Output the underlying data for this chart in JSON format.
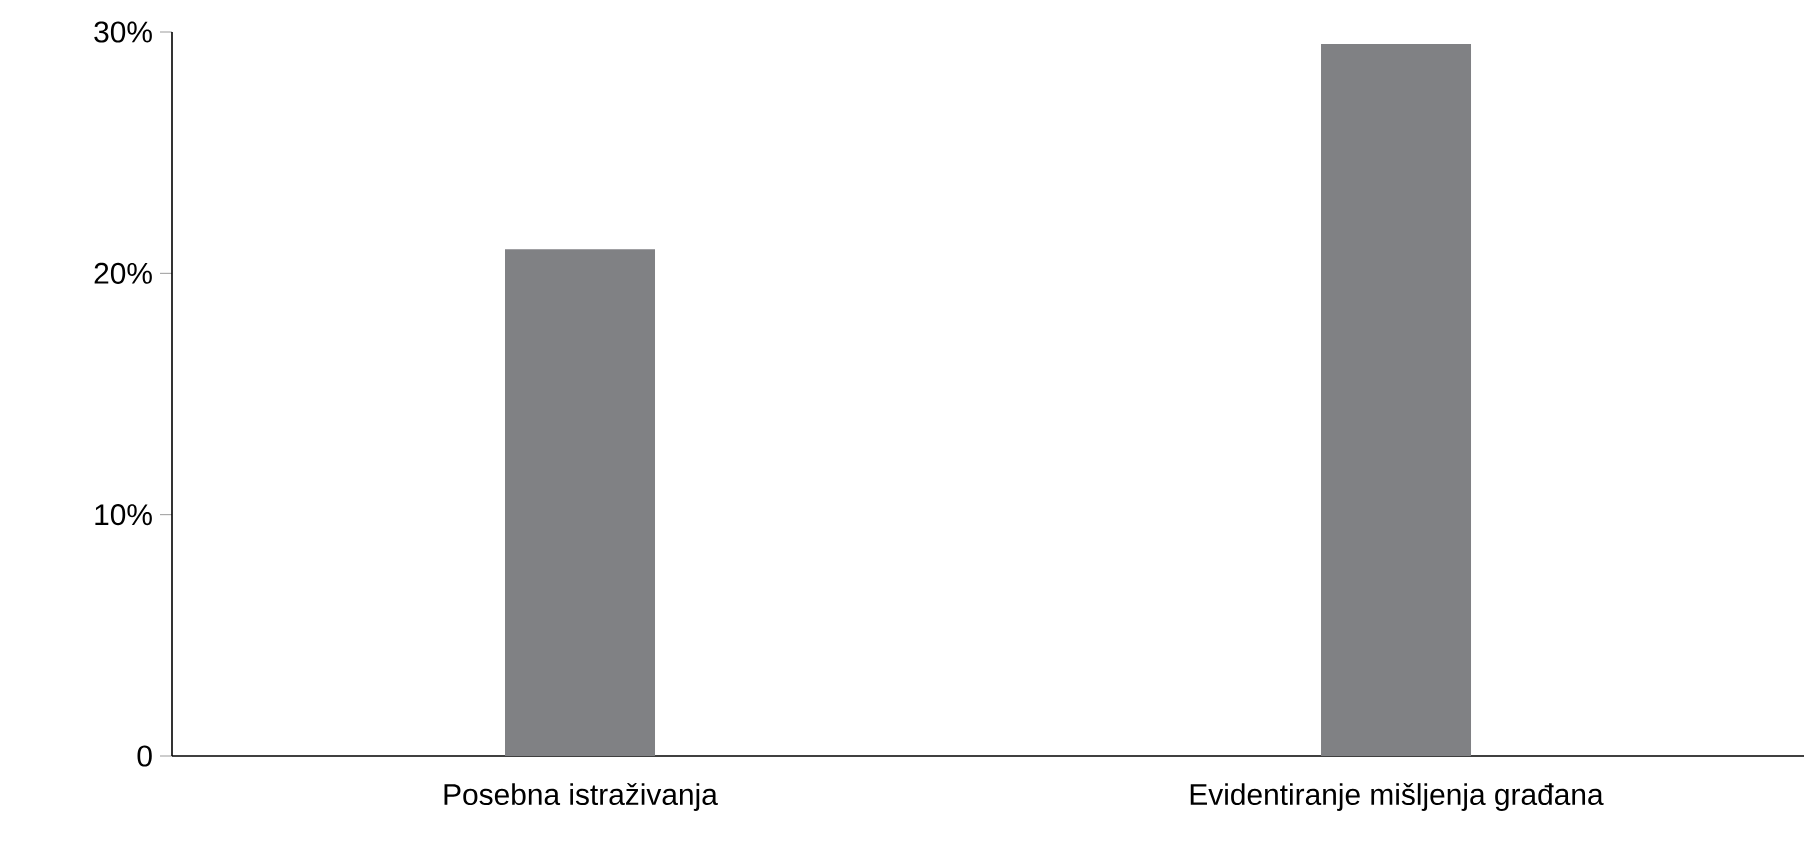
{
  "chart_data": {
    "type": "bar",
    "categories": [
      "Posebna istraživanja",
      "Evidentiranje mišljenja građana"
    ],
    "values": [
      21,
      29.5
    ],
    "color": "#808184",
    "ylim": [
      0,
      30
    ],
    "yticks": [
      {
        "value": 0,
        "label": "0"
      },
      {
        "value": 10,
        "label": "10%"
      },
      {
        "value": 20,
        "label": "20%"
      },
      {
        "value": 30,
        "label": "30%"
      }
    ],
    "grid": false
  }
}
